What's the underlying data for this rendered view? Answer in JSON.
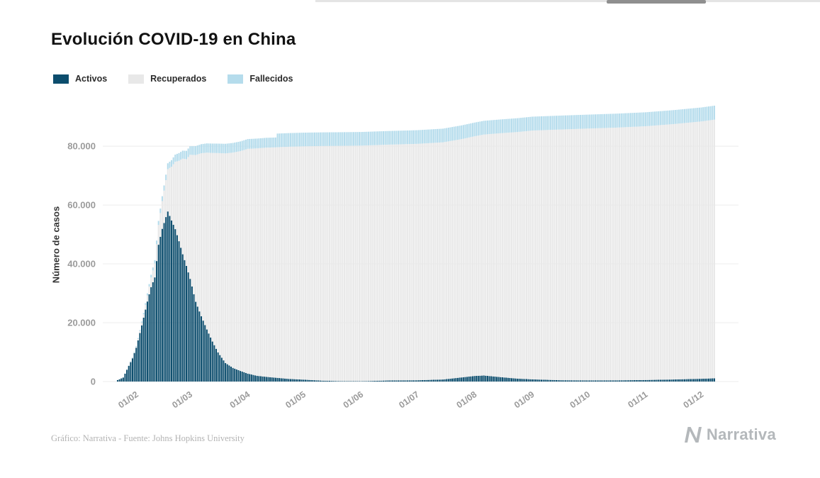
{
  "title": "Evolución COVID-19 en China",
  "legend": [
    {
      "label": "Activos",
      "color": "#0c4d6d"
    },
    {
      "label": "Recuperados",
      "color": "#e8e8e8"
    },
    {
      "label": "Fallecidos",
      "color": "#b5dcec"
    }
  ],
  "footer": {
    "source": "Gráfico: Narrativa - Fuente: Johns Hopkins University",
    "brand": "Narrativa"
  },
  "chart_data": {
    "type": "bar",
    "stacked": true,
    "title": "Evolución COVID-19 en China",
    "xlabel": "",
    "ylabel": "Número de casos",
    "grid": true,
    "legend_position": "top-left",
    "colors": {
      "grid": "#ececec",
      "tick_label": "#9b9b9b"
    },
    "x_axis": {
      "unit": "days since 22/01/2020",
      "range": [
        -8,
        334
      ],
      "ticks": [
        {
          "day": 10,
          "label": "01/02"
        },
        {
          "day": 39,
          "label": "01/03"
        },
        {
          "day": 70,
          "label": "01/04"
        },
        {
          "day": 100,
          "label": "01/05"
        },
        {
          "day": 131,
          "label": "01/06"
        },
        {
          "day": 161,
          "label": "01/07"
        },
        {
          "day": 192,
          "label": "01/08"
        },
        {
          "day": 223,
          "label": "01/09"
        },
        {
          "day": 253,
          "label": "01/10"
        },
        {
          "day": 284,
          "label": "01/11"
        },
        {
          "day": 314,
          "label": "01/12"
        }
      ]
    },
    "y_axis": {
      "range": [
        0,
        94000
      ],
      "ticks": [
        {
          "value": 0,
          "label": "0"
        },
        {
          "value": 20000,
          "label": "20.000"
        },
        {
          "value": 40000,
          "label": "40.000"
        },
        {
          "value": 60000,
          "label": "60.000"
        },
        {
          "value": 80000,
          "label": "80.000"
        }
      ]
    },
    "series_meta": [
      {
        "key": "activos",
        "name": "Activos",
        "color": "#0c4d6d"
      },
      {
        "key": "recuperados",
        "name": "Recuperados",
        "color": "#e8e8e8"
      },
      {
        "key": "fallecidos",
        "name": "Fallecidos",
        "color": "#b5dcec"
      }
    ],
    "samples": [
      {
        "date": "22/01",
        "day": 0,
        "activos": 500,
        "recuperados": 30,
        "fallecidos": 17
      },
      {
        "date": "25/01",
        "day": 3,
        "activos": 1350,
        "recuperados": 42,
        "fallecidos": 42
      },
      {
        "date": "28/01",
        "day": 6,
        "activos": 5300,
        "recuperados": 110,
        "fallecidos": 131
      },
      {
        "date": "30/01",
        "day": 8,
        "activos": 7900,
        "recuperados": 170,
        "fallecidos": 171
      },
      {
        "date": "01/02",
        "day": 10,
        "activos": 11500,
        "recuperados": 330,
        "fallecidos": 259
      },
      {
        "date": "03/02",
        "day": 12,
        "activos": 16500,
        "recuperados": 630,
        "fallecidos": 361
      },
      {
        "date": "05/02",
        "day": 14,
        "activos": 21700,
        "recuperados": 1150,
        "fallecidos": 491
      },
      {
        "date": "07/02",
        "day": 16,
        "activos": 27200,
        "recuperados": 2050,
        "fallecidos": 722
      },
      {
        "date": "09/02",
        "day": 18,
        "activos": 32100,
        "recuperados": 3280,
        "fallecidos": 908
      },
      {
        "date": "11/02",
        "day": 20,
        "activos": 35400,
        "recuperados": 4740,
        "fallecidos": 1113
      },
      {
        "date": "13/02",
        "day": 22,
        "activos": 46500,
        "recuperados": 6720,
        "fallecidos": 1369
      },
      {
        "date": "15/02",
        "day": 24,
        "activos": 51900,
        "recuperados": 9420,
        "fallecidos": 1666
      },
      {
        "date": "17/02",
        "day": 26,
        "activos": 55900,
        "recuperados": 12550,
        "fallecidos": 1868
      },
      {
        "date": "18/02",
        "day": 27,
        "activos": 57800,
        "recuperados": 14380,
        "fallecidos": 2000
      },
      {
        "date": "20/02",
        "day": 29,
        "activos": 54750,
        "recuperados": 18270,
        "fallecidos": 2236
      },
      {
        "date": "22/02",
        "day": 31,
        "activos": 51800,
        "recuperados": 22890,
        "fallecidos": 2442
      },
      {
        "date": "24/02",
        "day": 33,
        "activos": 47700,
        "recuperados": 27320,
        "fallecidos": 2626
      },
      {
        "date": "26/02",
        "day": 35,
        "activos": 43250,
        "recuperados": 32500,
        "fallecidos": 2715
      },
      {
        "date": "28/02",
        "day": 37,
        "activos": 39300,
        "recuperados": 36280,
        "fallecidos": 2835
      },
      {
        "date": "01/03",
        "day": 39,
        "activos": 34900,
        "recuperados": 42160,
        "fallecidos": 2915
      },
      {
        "date": "04/03",
        "day": 42,
        "activos": 27100,
        "recuperados": 49900,
        "fallecidos": 3012
      },
      {
        "date": "07/03",
        "day": 45,
        "activos": 22200,
        "recuperados": 55400,
        "fallecidos": 3070
      },
      {
        "date": "10/03",
        "day": 48,
        "activos": 17700,
        "recuperados": 60100,
        "fallecidos": 3139
      },
      {
        "date": "13/03",
        "day": 51,
        "activos": 13600,
        "recuperados": 64100,
        "fallecidos": 3180
      },
      {
        "date": "16/03",
        "day": 54,
        "activos": 9900,
        "recuperados": 67750,
        "fallecidos": 3218
      },
      {
        "date": "20/03",
        "day": 58,
        "activos": 6300,
        "recuperados": 71250,
        "fallecidos": 3253
      },
      {
        "date": "24/03",
        "day": 62,
        "activos": 4650,
        "recuperados": 73160,
        "fallecidos": 3281
      },
      {
        "date": "28/03",
        "day": 66,
        "activos": 3600,
        "recuperados": 74700,
        "fallecidos": 3300
      },
      {
        "date": "01/04",
        "day": 70,
        "activos": 2700,
        "recuperados": 76400,
        "fallecidos": 3312
      },
      {
        "date": "06/04",
        "day": 75,
        "activos": 1950,
        "recuperados": 77300,
        "fallecidos": 3331
      },
      {
        "date": "11/04",
        "day": 80,
        "activos": 1600,
        "recuperados": 77900,
        "fallecidos": 3339
      },
      {
        "date": "16/04",
        "day": 85,
        "activos": 1300,
        "recuperados": 78300,
        "fallecidos": 3346
      },
      {
        "date": "17/04",
        "day": 86,
        "activos": 1250,
        "recuperados": 78400,
        "fallecidos": 4632
      },
      {
        "date": "23/04",
        "day": 92,
        "activos": 900,
        "recuperados": 78900,
        "fallecidos": 4636
      },
      {
        "date": "01/05",
        "day": 100,
        "activos": 650,
        "recuperados": 79300,
        "fallecidos": 4637
      },
      {
        "date": "11/05",
        "day": 110,
        "activos": 300,
        "recuperados": 79750,
        "fallecidos": 4638
      },
      {
        "date": "21/05",
        "day": 120,
        "activos": 150,
        "recuperados": 79950,
        "fallecidos": 4638
      },
      {
        "date": "01/06",
        "day": 131,
        "activos": 110,
        "recuperados": 80070,
        "fallecidos": 4638
      },
      {
        "date": "15/06",
        "day": 145,
        "activos": 350,
        "recuperados": 80150,
        "fallecidos": 4638
      },
      {
        "date": "01/07",
        "day": 161,
        "activos": 430,
        "recuperados": 80350,
        "fallecidos": 4644
      },
      {
        "date": "15/07",
        "day": 175,
        "activos": 700,
        "recuperados": 80600,
        "fallecidos": 4648
      },
      {
        "date": "25/07",
        "day": 185,
        "activos": 1400,
        "recuperados": 81000,
        "fallecidos": 4655
      },
      {
        "date": "01/08",
        "day": 192,
        "activos": 1900,
        "recuperados": 81450,
        "fallecidos": 4661
      },
      {
        "date": "06/08",
        "day": 197,
        "activos": 2050,
        "recuperados": 81900,
        "fallecidos": 4665
      },
      {
        "date": "15/08",
        "day": 206,
        "activos": 1500,
        "recuperados": 82900,
        "fallecidos": 4680
      },
      {
        "date": "24/08",
        "day": 215,
        "activos": 1000,
        "recuperados": 83800,
        "fallecidos": 4700
      },
      {
        "date": "01/09",
        "day": 223,
        "activos": 750,
        "recuperados": 84550,
        "fallecidos": 4720
      },
      {
        "date": "16/09",
        "day": 238,
        "activos": 450,
        "recuperados": 85200,
        "fallecidos": 4735
      },
      {
        "date": "01/10",
        "day": 253,
        "activos": 380,
        "recuperados": 85600,
        "fallecidos": 4739
      },
      {
        "date": "16/10",
        "day": 268,
        "activos": 400,
        "recuperados": 85900,
        "fallecidos": 4741
      },
      {
        "date": "01/11",
        "day": 284,
        "activos": 520,
        "recuperados": 86250,
        "fallecidos": 4742
      },
      {
        "date": "16/11",
        "day": 299,
        "activos": 700,
        "recuperados": 86800,
        "fallecidos": 4745
      },
      {
        "date": "01/12",
        "day": 314,
        "activos": 950,
        "recuperados": 87450,
        "fallecidos": 4750
      },
      {
        "date": "08/12",
        "day": 321,
        "activos": 1100,
        "recuperados": 87900,
        "fallecidos": 4755
      }
    ]
  }
}
